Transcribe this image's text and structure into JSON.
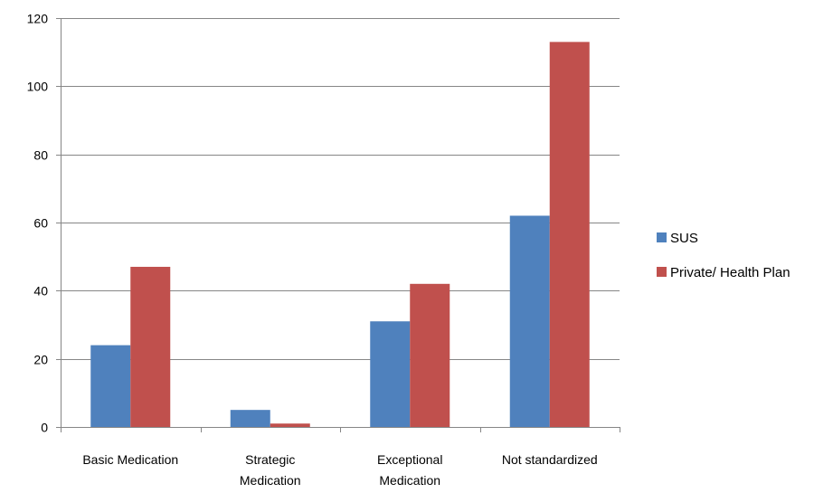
{
  "chart_data": {
    "type": "bar",
    "categories": [
      [
        "Basic Medication"
      ],
      [
        "Strategic",
        "Medication"
      ],
      [
        "Exceptional",
        "Medication"
      ],
      [
        "Not standardized"
      ]
    ],
    "series": [
      {
        "name": "SUS",
        "color": "#4F81BD",
        "values": [
          24,
          5,
          31,
          62
        ]
      },
      {
        "name": "Private/ Health Plan",
        "color": "#C0504D",
        "values": [
          47,
          1,
          42,
          113
        ]
      }
    ],
    "ylim": [
      0,
      120
    ],
    "yticks": [
      0,
      20,
      40,
      60,
      80,
      100,
      120
    ],
    "grid": true,
    "legend_position": "right"
  }
}
